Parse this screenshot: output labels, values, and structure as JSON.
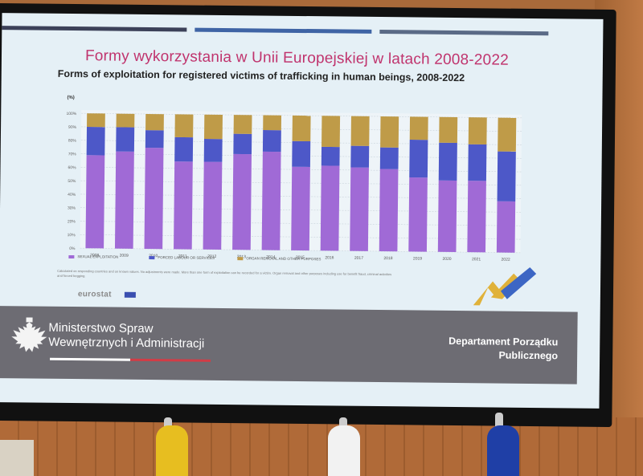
{
  "slide": {
    "title_pl": "Formy wykorzystania w Unii Europejskiej w latach 2008-2022",
    "subtitle_en": "Forms of exploitation for registered victims of trafficking in human beings, 2008-2022",
    "note": "Calculated on responding countries and on known values. No adjustments were made. More than one form of exploitation can be recorded for a victim. Organ removal and other purposes including use for benefit fraud, criminal activities and forced begging.",
    "source": "eurostat",
    "footer": {
      "ministry_line1": "Ministerstwo Spraw",
      "ministry_line2": "Wewnętrznych i Administracji",
      "department_line1": "Departament Porządku",
      "department_line2": "Publicznego"
    }
  },
  "colors": {
    "sexual": "#a06ad6",
    "labour": "#4d58c8",
    "other": "#bf9b48",
    "title_pink": "#c0336d",
    "footer_gray": "#6d6c73"
  },
  "chart_data": {
    "type": "bar",
    "stacked": true,
    "title": "Forms of exploitation for registered victims of trafficking in human beings, 2008-2022",
    "ylabel": "(%)",
    "ylim": [
      0,
      100
    ],
    "yticks": [
      "0%",
      "10%",
      "20%",
      "30%",
      "40%",
      "50%",
      "60%",
      "70%",
      "80%",
      "90%",
      "100%"
    ],
    "grid": true,
    "legend_position": "bottom-left",
    "categories": [
      "2008",
      "2009",
      "2010",
      "2011",
      "2012",
      "2013",
      "2014",
      "2015",
      "2016",
      "2017",
      "2018",
      "2019",
      "2020",
      "2021",
      "2022"
    ],
    "series": [
      {
        "name": "SEXUAL EXPLOITATION",
        "values": [
          69,
          72,
          75,
          65,
          65,
          71,
          73,
          62,
          63,
          62,
          61,
          55,
          53,
          53,
          38
        ]
      },
      {
        "name": "FORCED LABOUR OR SERVICES",
        "values": [
          21,
          18,
          13,
          18,
          17,
          15,
          16,
          19,
          14,
          16,
          16,
          28,
          28,
          27,
          37
        ]
      },
      {
        "name": "ORGAN REMOVAL AND OTHER PURPOSES",
        "values": [
          10,
          10,
          12,
          17,
          18,
          14,
          11,
          19,
          23,
          22,
          23,
          17,
          19,
          20,
          25
        ]
      }
    ]
  }
}
